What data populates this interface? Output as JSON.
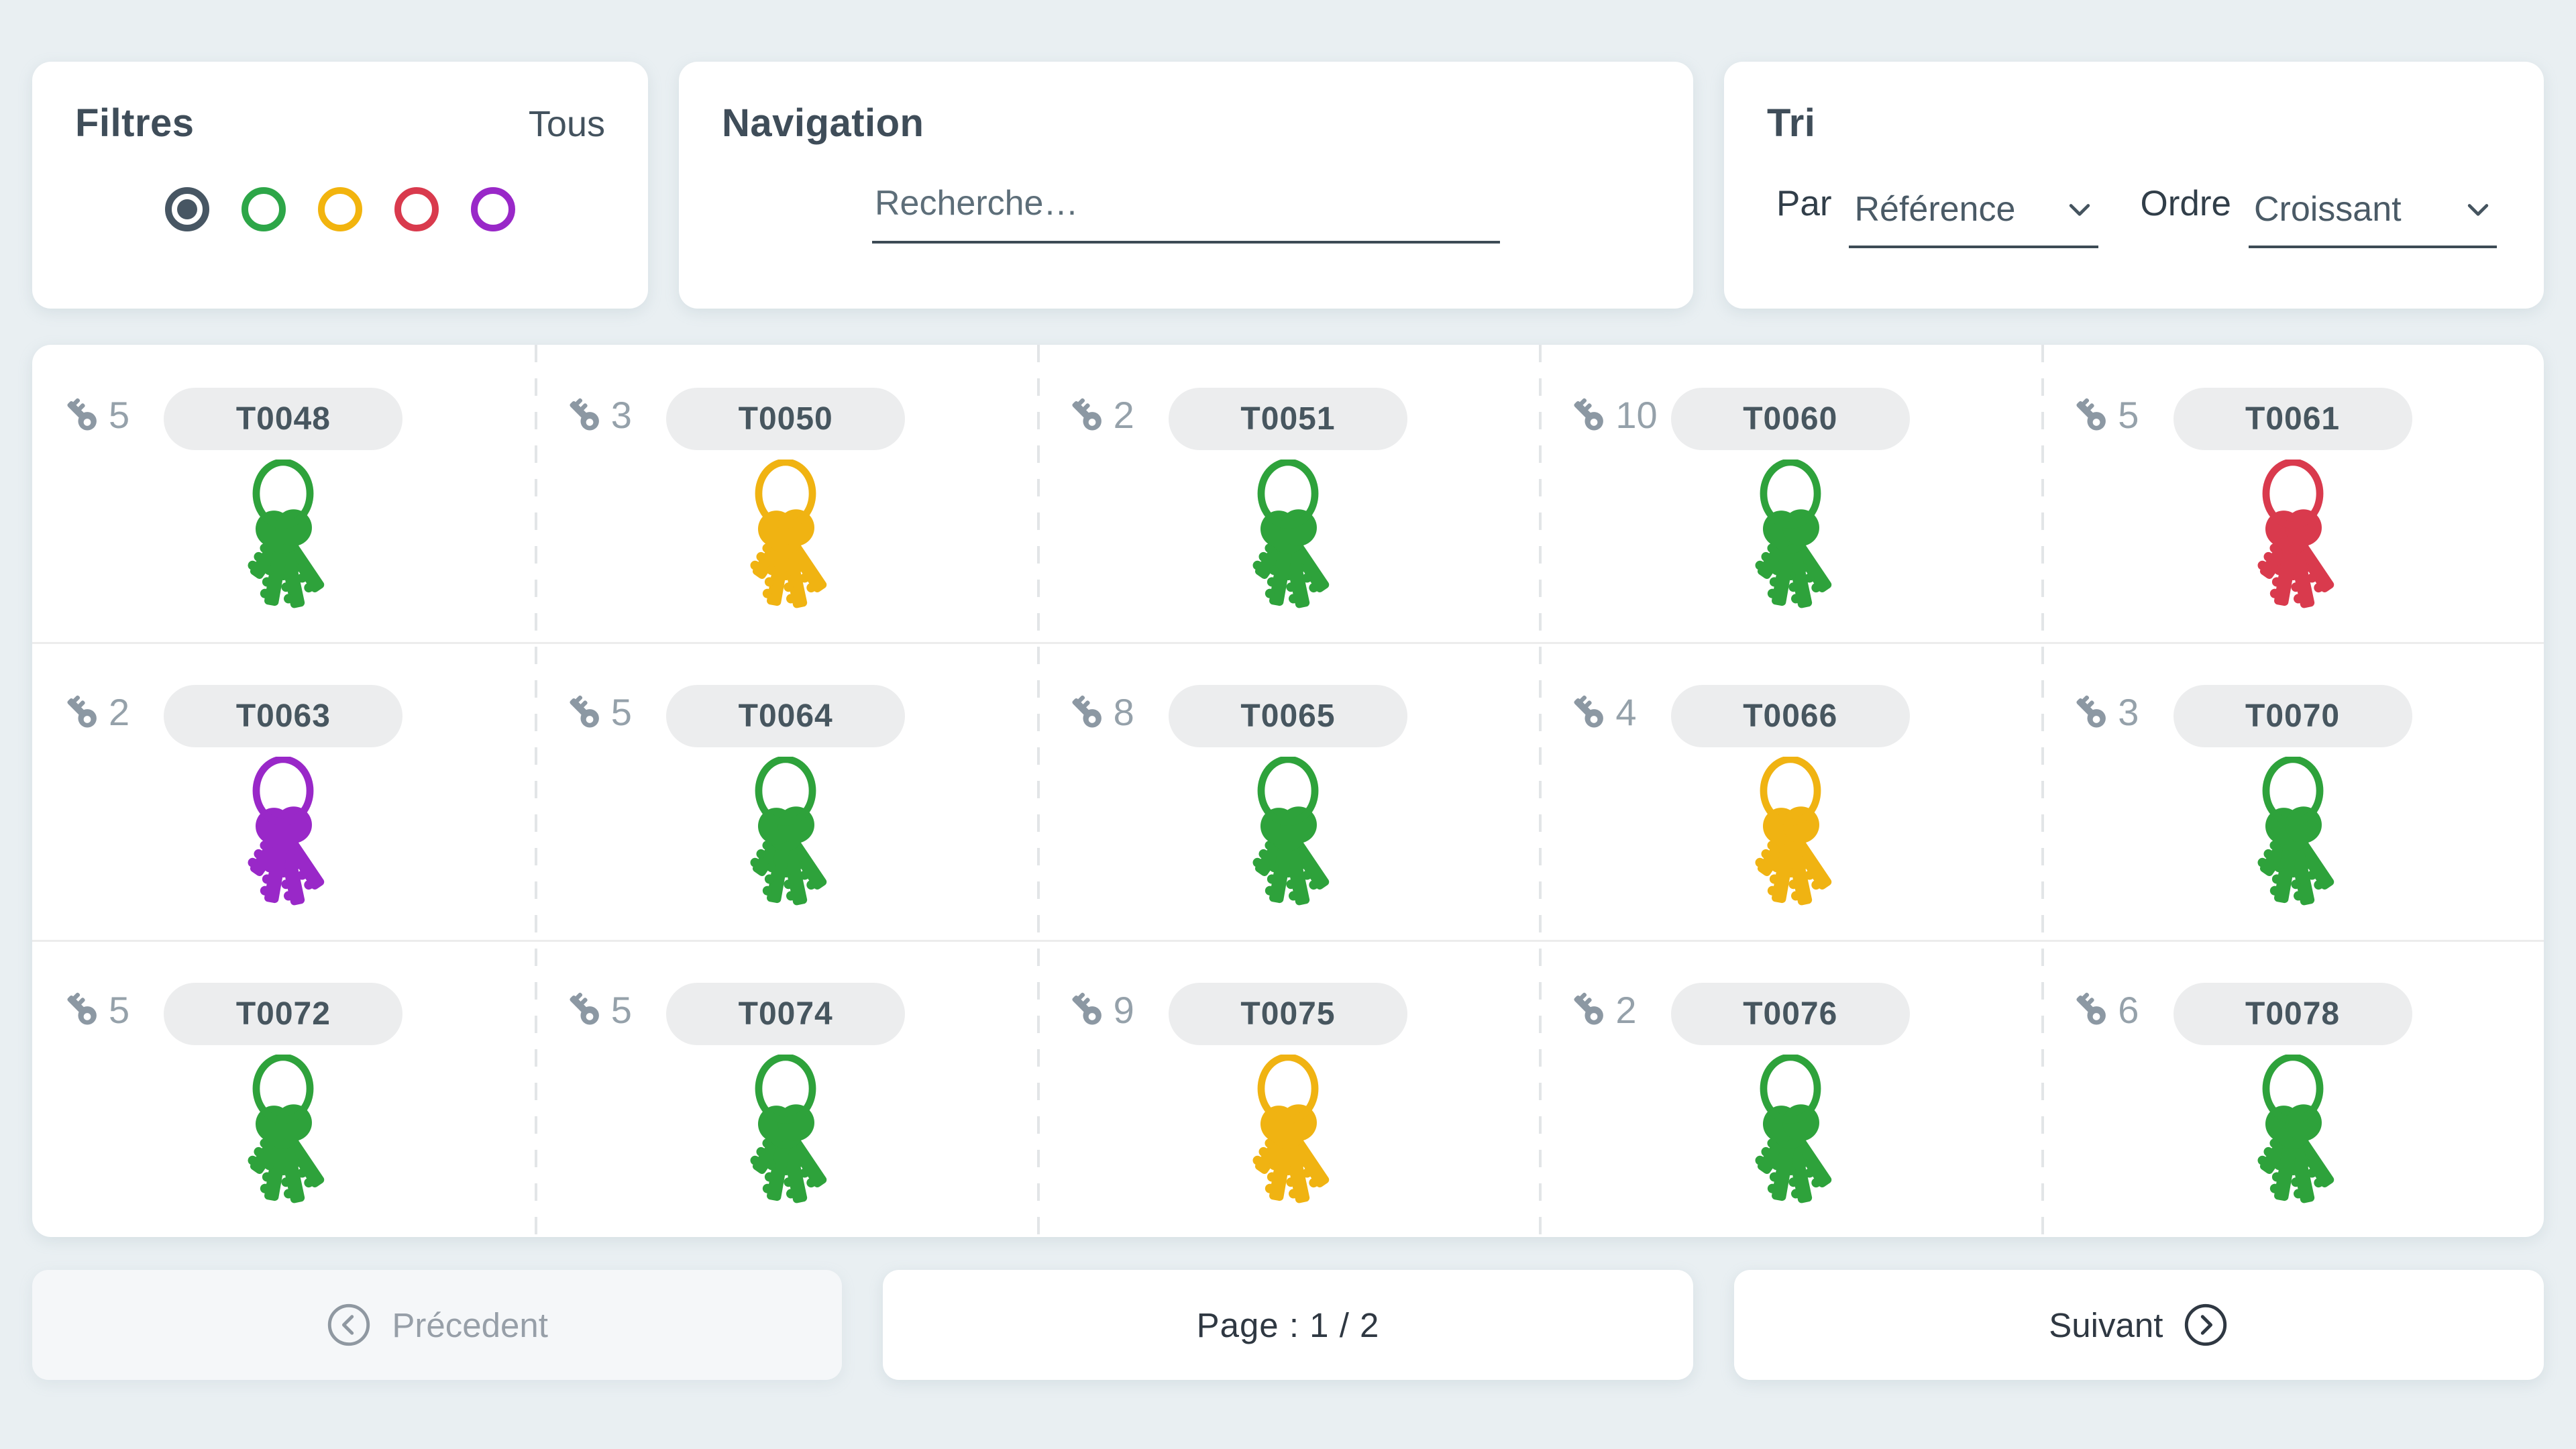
{
  "filters": {
    "title": "Filtres",
    "all_label": "Tous",
    "options": [
      {
        "name": "all",
        "color": "#475663",
        "selected": true
      },
      {
        "name": "green",
        "color": "#2DA648",
        "selected": false
      },
      {
        "name": "yellow",
        "color": "#F2B40E",
        "selected": false
      },
      {
        "name": "red",
        "color": "#D93A4D",
        "selected": false
      },
      {
        "name": "purple",
        "color": "#9928C8",
        "selected": false
      }
    ]
  },
  "navigation": {
    "title": "Navigation",
    "search_placeholder": "Recherche…"
  },
  "sort": {
    "title": "Tri",
    "by_label": "Par",
    "by_value": "Référence",
    "order_label": "Ordre",
    "order_value": "Croissant"
  },
  "key_colors": {
    "green": "#2EA23B",
    "yellow": "#F0B312",
    "red": "#D93A4D",
    "purple": "#9928C8"
  },
  "keyrings": [
    {
      "ref": "T0048",
      "count": "5",
      "color": "green"
    },
    {
      "ref": "T0050",
      "count": "3",
      "color": "yellow"
    },
    {
      "ref": "T0051",
      "count": "2",
      "color": "green"
    },
    {
      "ref": "T0060",
      "count": "10",
      "color": "green"
    },
    {
      "ref": "T0061",
      "count": "5",
      "color": "red"
    },
    {
      "ref": "T0063",
      "count": "2",
      "color": "purple"
    },
    {
      "ref": "T0064",
      "count": "5",
      "color": "green"
    },
    {
      "ref": "T0065",
      "count": "8",
      "color": "green"
    },
    {
      "ref": "T0066",
      "count": "4",
      "color": "yellow"
    },
    {
      "ref": "T0070",
      "count": "3",
      "color": "green"
    },
    {
      "ref": "T0072",
      "count": "5",
      "color": "green"
    },
    {
      "ref": "T0074",
      "count": "5",
      "color": "green"
    },
    {
      "ref": "T0075",
      "count": "9",
      "color": "yellow"
    },
    {
      "ref": "T0076",
      "count": "2",
      "color": "green"
    },
    {
      "ref": "T0078",
      "count": "6",
      "color": "green"
    }
  ],
  "pagination": {
    "previous_label": "Précedent",
    "page_text": "Page : 1 / 2",
    "current_page": "1",
    "total_pages": "2",
    "next_label": "Suivant"
  }
}
